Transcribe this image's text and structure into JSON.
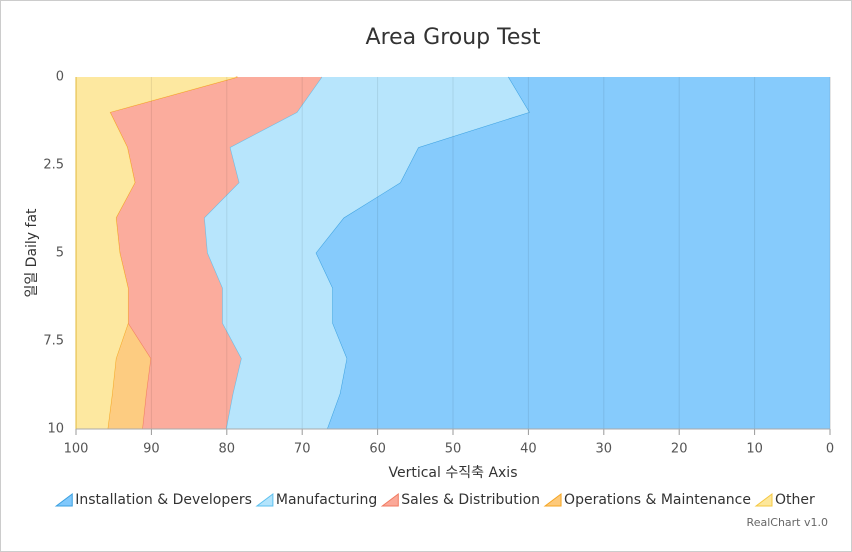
{
  "chart_data": {
    "type": "area",
    "stacking": "percent",
    "orientation": "horizontal",
    "title": "Area Group Test",
    "x_axis_title": "일일 Daily fat",
    "y_axis_title": "Vertical 수직축 Axis",
    "credits": "RealChart v1.0",
    "x": [
      0,
      1,
      2,
      3,
      4,
      5,
      6,
      7,
      8,
      9,
      10
    ],
    "xlim": [
      0,
      10
    ],
    "xticks": [
      0,
      2.5,
      5,
      7.5,
      10
    ],
    "ylim": [
      0,
      100
    ],
    "yticks": [
      0,
      10,
      20,
      30,
      40,
      50,
      60,
      70,
      80,
      90,
      100
    ],
    "y_reversed": true,
    "grid": true,
    "legend": "bottom",
    "series": [
      {
        "name": "Installation & Developers",
        "color": "#80c8fc",
        "line_color": "#3ba0e0",
        "values": [
          42.7,
          39.9,
          54.6,
          57.0,
          64.5,
          68.2,
          66.0,
          66.0,
          64.1,
          65.0,
          66.7
        ]
      },
      {
        "name": "Manufacturing",
        "color": "#b3e4fc",
        "line_color": "#5ec1ef",
        "values": [
          24.7,
          30.8,
          25.0,
          21.4,
          18.5,
          14.4,
          14.6,
          14.6,
          14.0,
          14.2,
          13.4
        ]
      },
      {
        "name": "Sales & Distribution",
        "color": "#fba898",
        "line_color": "#f07a60",
        "values": [
          11.2,
          24.8,
          13.6,
          13.8,
          11.7,
          11.6,
          12.5,
          12.5,
          12.0,
          11.5,
          11.1
        ]
      },
      {
        "name": "Operations & Maintenance",
        "color": "#fdc97a",
        "line_color": "#f5a623",
        "values": [
          0,
          0,
          0,
          0,
          0,
          0,
          0,
          0,
          4.6,
          4.5,
          4.6
        ]
      },
      {
        "name": "Other",
        "color": "#fde79b",
        "line_color": "#f5c842",
        "values": [
          21.4,
          4.5,
          6.8,
          7.8,
          5.3,
          5.8,
          6.9,
          6.9,
          5.3,
          4.8,
          4.2
        ]
      }
    ]
  }
}
